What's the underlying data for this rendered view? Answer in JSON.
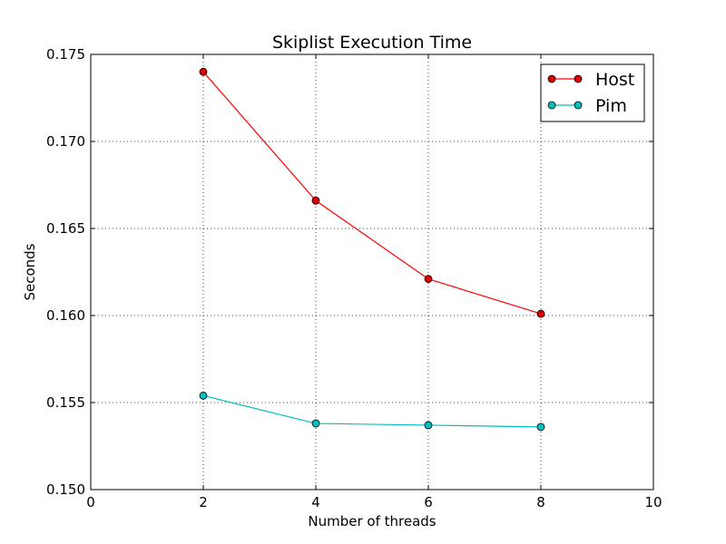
{
  "chart_data": {
    "type": "line",
    "title": "Skiplist Execution Time",
    "xlabel": "Number of threads",
    "ylabel": "Seconds",
    "xlim": [
      0,
      10
    ],
    "ylim": [
      0.15,
      0.175
    ],
    "xticks": [
      0,
      2,
      4,
      6,
      8,
      10
    ],
    "xtick_labels": [
      "0",
      "2",
      "4",
      "6",
      "8",
      "10"
    ],
    "yticks": [
      0.15,
      0.155,
      0.16,
      0.165,
      0.17,
      0.175
    ],
    "ytick_labels": [
      "0.150",
      "0.155",
      "0.160",
      "0.165",
      "0.170",
      "0.175"
    ],
    "grid": true,
    "legend_position": "top-right",
    "x": [
      2,
      4,
      6,
      8
    ],
    "series": [
      {
        "name": "Host",
        "color": "#ff0000",
        "marker_fill": "#dd0000",
        "values": [
          0.174,
          0.1666,
          0.1621,
          0.1601
        ]
      },
      {
        "name": "Pim",
        "color": "#00bfbf",
        "marker_fill": "#00bfbf",
        "values": [
          0.1554,
          0.1538,
          0.1537,
          0.1536
        ]
      }
    ]
  }
}
